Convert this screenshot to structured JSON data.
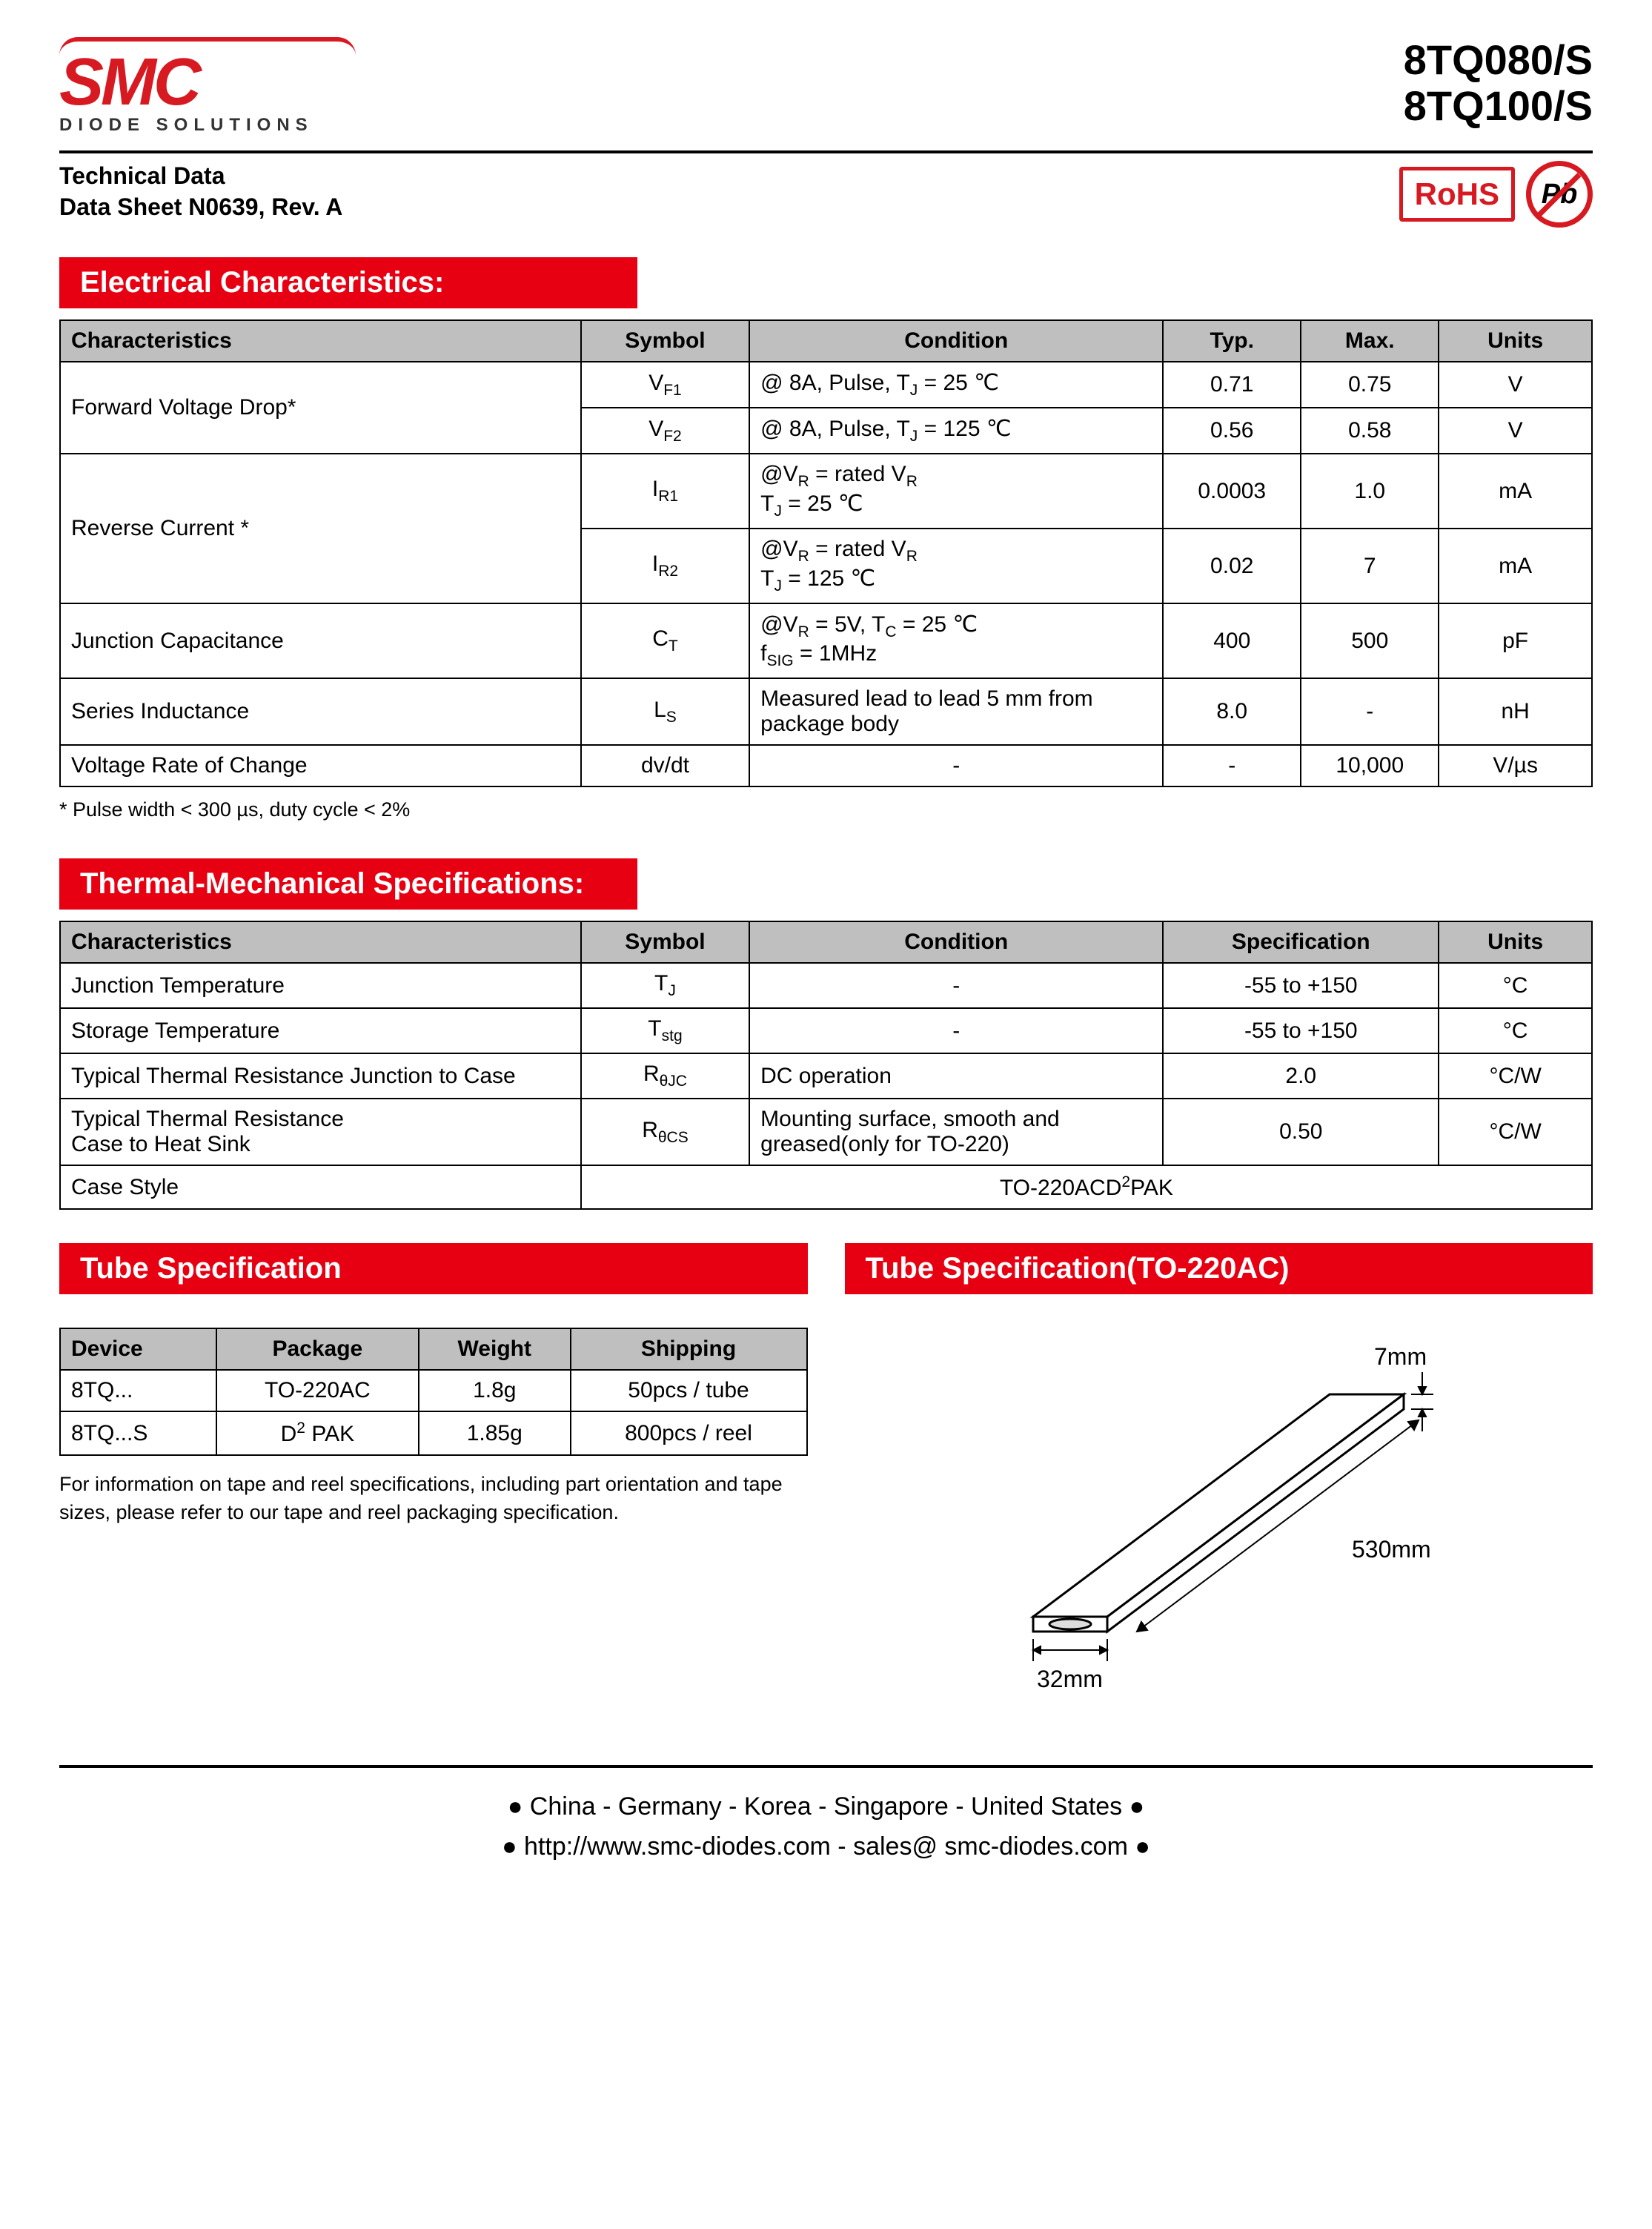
{
  "header": {
    "logo_text": "SMC",
    "logo_sub": "DIODE SOLUTIONS",
    "part1": "8TQ080/S",
    "part2": "8TQ100/S",
    "tech_data": "Technical Data",
    "datasheet": "Data Sheet N0639, Rev. A",
    "rohs": "RoHS",
    "pb": "Pb"
  },
  "section1": {
    "title": "Electrical Characteristics:",
    "headers": {
      "char": "Characteristics",
      "symbol": "Symbol",
      "condition": "Condition",
      "typ": "Typ.",
      "max": "Max.",
      "units": "Units"
    },
    "rows": [
      {
        "char": "Forward Voltage Drop*",
        "rowspan": 2,
        "symbol": "V",
        "sub": "F1",
        "condition": "@ 8A, Pulse, T",
        "csub": "J",
        "cafter": " = 25 ℃",
        "typ": "0.71",
        "max": "0.75",
        "units": "V"
      },
      {
        "symbol": "V",
        "sub": "F2",
        "condition": "@ 8A, Pulse, T",
        "csub": "J",
        "cafter": " = 125 ℃",
        "typ": "0.56",
        "max": "0.58",
        "units": "V"
      },
      {
        "char": "Reverse Current *",
        "rowspan": 2,
        "symbol": "I",
        "sub": "R1",
        "condition_html": "@V<sub>R</sub> = rated V<sub>R</sub><br>T<sub>J</sub> = 25 ℃",
        "typ": "0.0003",
        "max": "1.0",
        "units": "mA"
      },
      {
        "symbol": "I",
        "sub": "R2",
        "condition_html": "@V<sub>R</sub> = rated V<sub>R</sub><br>T<sub>J</sub> = 125 ℃",
        "typ": "0.02",
        "max": "7",
        "units": "mA"
      },
      {
        "char": "Junction Capacitance",
        "symbol": "C",
        "sub": "T",
        "condition_html": "@V<sub>R</sub> = 5V, T<sub>C</sub> = 25 ℃<br>f<sub>SIG</sub> = 1MHz",
        "typ": "400",
        "max": "500",
        "units": "pF"
      },
      {
        "char": "Series Inductance",
        "symbol": "L",
        "sub": "S",
        "condition": "Measured lead to lead 5 mm from package body",
        "typ": "8.0",
        "max": "-",
        "units": "nH"
      },
      {
        "char": "Voltage Rate of Change",
        "symbol_plain": "dv/dt",
        "condition": "-",
        "condition_center": true,
        "typ": "-",
        "max": "10,000",
        "units": "V/µs"
      }
    ],
    "note": "*  Pulse width < 300 µs,  duty cycle < 2%"
  },
  "section2": {
    "title": "Thermal-Mechanical Specifications:",
    "headers": {
      "char": "Characteristics",
      "symbol": "Symbol",
      "condition": "Condition",
      "spec": "Specification",
      "units": "Units"
    },
    "rows": [
      {
        "char": "Junction Temperature",
        "symbol": "T",
        "sub": "J",
        "condition": "-",
        "spec": "-55 to +150",
        "units": "°C"
      },
      {
        "char": "Storage Temperature",
        "symbol": "T",
        "sub": "stg",
        "condition": "-",
        "spec": "-55 to +150",
        "units": "°C"
      },
      {
        "char": "Typical Thermal Resistance Junction to Case",
        "symbol": "R",
        "sub": "θJC",
        "condition": "DC operation",
        "cleft": true,
        "spec": "2.0",
        "units": "°C/W"
      },
      {
        "char": "Typical Thermal Resistance\nCase to Heat Sink",
        "symbol": "R",
        "sub": "θCS",
        "condition": "Mounting surface, smooth and greased(only for TO-220)",
        "cleft": true,
        "spec": "0.50",
        "units": "°C/W"
      },
      {
        "char": "Case Style",
        "case_style": "TO-220ACD²PAK"
      }
    ]
  },
  "section3": {
    "title_left": "Tube Specification",
    "title_right": "Tube Specification(TO-220AC)",
    "headers": {
      "device": "Device",
      "package": "Package",
      "weight": "Weight",
      "shipping": "Shipping"
    },
    "rows": [
      {
        "device": "8TQ...",
        "package": "TO-220AC",
        "weight": "1.8g",
        "shipping": "50pcs / tube"
      },
      {
        "device": "8TQ...S",
        "package": "D² PAK",
        "weight": "1.85g",
        "shipping": "800pcs / reel"
      }
    ],
    "info": "For information on tape and reel specifications, including part orientation and tape sizes, please refer to our tape and reel packaging specification.",
    "dims": {
      "height": "7mm",
      "length": "530mm",
      "width": "32mm"
    }
  },
  "footer": {
    "locations": "● China  -  Germany  -  Korea  -  Singapore  -  United States ●",
    "links": "● http://www.smc-diodes.com  -  sales@ smc-diodes.com ●"
  },
  "colors": {
    "brand_red": "#e60012",
    "logo_red": "#d71921",
    "header_gray": "#bfbfbf"
  }
}
